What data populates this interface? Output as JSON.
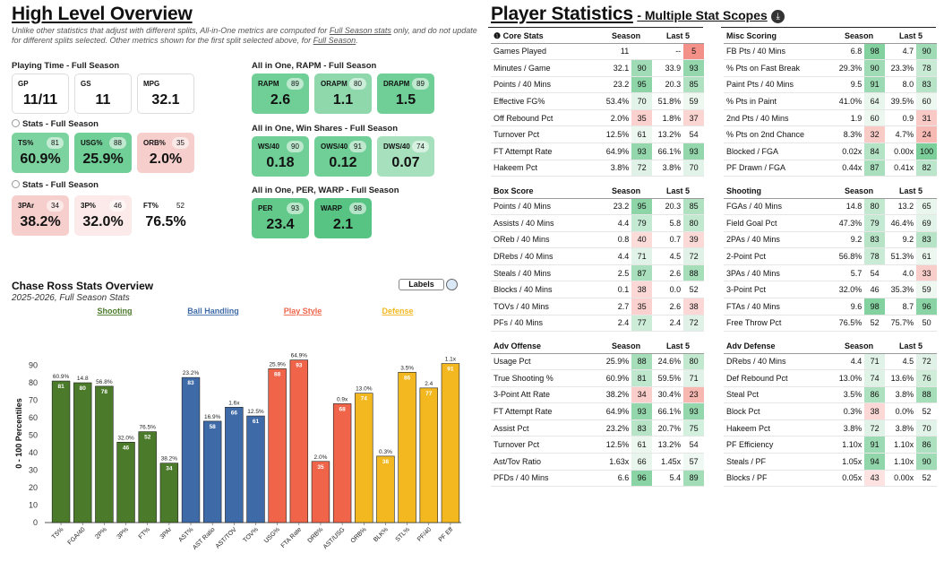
{
  "left_title": "High Level Overview",
  "note_parts": [
    "Unlike other statistics that adjust with different splits, All-in-One metrics are computed for ",
    "Full Season stats",
    " only, and do not update for different splits selected. Other metrics shown for the first split selected above, for ",
    "Full Season",
    "."
  ],
  "playing_time": {
    "title": "Playing Time - Full Season",
    "cards": [
      {
        "label": "GP",
        "value": "11/11"
      },
      {
        "label": "GS",
        "value": "11"
      },
      {
        "label": "MPG",
        "value": "32.1"
      }
    ]
  },
  "stats1": {
    "title": "Stats - Full Season",
    "cards": [
      {
        "label": "TS%",
        "pct": "81",
        "value": "60.9%",
        "color": "#7dd3a0"
      },
      {
        "label": "USG%",
        "pct": "88",
        "value": "25.9%",
        "color": "#6fcf96"
      },
      {
        "label": "ORB%",
        "pct": "35",
        "value": "2.0%",
        "color": "#f6cfcd"
      }
    ]
  },
  "stats2": {
    "title": "Stats - Full Season",
    "cards": [
      {
        "label": "3PAr",
        "pct": "34",
        "value": "38.2%",
        "color": "#f6cfcd"
      },
      {
        "label": "3P%",
        "pct": "46",
        "value": "32.0%",
        "color": "#fbeae9"
      },
      {
        "label": "FT%",
        "pct": "52",
        "value": "76.5%",
        "color": "#ffffff"
      }
    ]
  },
  "rapm": {
    "title": "All in One, RAPM - Full Season",
    "cards": [
      {
        "label": "RAPM",
        "pct": "89",
        "value": "2.6",
        "color": "#6fcf96"
      },
      {
        "label": "ORAPM",
        "pct": "80",
        "value": "1.1",
        "color": "#8fd8ac"
      },
      {
        "label": "DRAPM",
        "pct": "89",
        "value": "1.5",
        "color": "#6fcf96"
      }
    ]
  },
  "ws": {
    "title": "All in One, Win Shares - Full Season",
    "cards": [
      {
        "label": "WS/40",
        "pct": "90",
        "value": "0.18",
        "color": "#6fcf96"
      },
      {
        "label": "OWS/40",
        "pct": "91",
        "value": "0.12",
        "color": "#6fcf96"
      },
      {
        "label": "DWS/40",
        "pct": "74",
        "value": "0.07",
        "color": "#a7e0bd"
      }
    ]
  },
  "per": {
    "title": "All in One, PER, WARP - Full Season",
    "cards": [
      {
        "label": "PER",
        "pct": "93",
        "value": "23.4",
        "color": "#62c98b"
      },
      {
        "label": "WARP",
        "pct": "98",
        "value": "2.1",
        "color": "#58c483"
      }
    ]
  },
  "chart_title": "Chase Ross Stats Overview",
  "chart_subtitle": "2025-2026, Full Season Stats",
  "labels_button": "Labels",
  "chart_data": {
    "type": "bar",
    "ylabel": "0 - 100 Percentiles",
    "ylim": [
      0,
      100
    ],
    "yticks": [
      0,
      10,
      20,
      30,
      40,
      50,
      60,
      70,
      80,
      90
    ],
    "groups": [
      {
        "name": "Shooting",
        "color": "#4a7a2a"
      },
      {
        "name": "Ball Handling",
        "color": "#3f6aa8"
      },
      {
        "name": "Play Style",
        "color": "#f0644a"
      },
      {
        "name": "Defense",
        "color": "#f3b820"
      }
    ],
    "bars": [
      {
        "cat": "TS%",
        "value": 81,
        "label": "60.9%",
        "group": 0
      },
      {
        "cat": "FGA/40",
        "value": 80,
        "label": "14.8",
        "group": 0
      },
      {
        "cat": "2P%",
        "value": 78,
        "label": "56.8%",
        "group": 0
      },
      {
        "cat": "3P%",
        "value": 46,
        "label": "32.0%",
        "group": 0
      },
      {
        "cat": "FT%",
        "value": 52,
        "label": "76.5%",
        "group": 0
      },
      {
        "cat": "3PAr",
        "value": 34,
        "label": "38.2%",
        "group": 0
      },
      {
        "cat": "AST%",
        "value": 83,
        "label": "23.2%",
        "group": 1
      },
      {
        "cat": "AST Ratio",
        "value": 58,
        "label": "16.9%",
        "group": 1
      },
      {
        "cat": "AST/TOV",
        "value": 66,
        "label": "1.6x",
        "group": 1
      },
      {
        "cat": "TOV%",
        "value": 61,
        "label": "12.5%",
        "group": 1
      },
      {
        "cat": "USG%",
        "value": 88,
        "label": "25.9%",
        "group": 2
      },
      {
        "cat": "FTA Rate",
        "value": 93,
        "label": "64.9%",
        "group": 2
      },
      {
        "cat": "DRB%",
        "value": 35,
        "label": "2.0%",
        "group": 2
      },
      {
        "cat": "AST/USG",
        "value": 68,
        "label": "0.9x",
        "group": 2
      },
      {
        "cat": "ORB%",
        "value": 74,
        "label": "13.0%",
        "group": 3
      },
      {
        "cat": "BLK%",
        "value": 38,
        "label": "0.3%",
        "group": 3
      },
      {
        "cat": "STL%",
        "value": 86,
        "label": "3.5%",
        "group": 3
      },
      {
        "cat": "PF/40",
        "value": 77,
        "label": "2.4",
        "group": 3
      },
      {
        "cat": "PF Eff",
        "value": 91,
        "label": "1.1x",
        "group": 3
      }
    ]
  },
  "right_title": "Player Statistics",
  "right_subtitle": "- Multiple Stat Scopes",
  "tables": [
    {
      "title": "Core Stats",
      "h1": "Season",
      "h2": "Last 5",
      "rows": [
        [
          "Games Played",
          "11",
          "",
          "--",
          "5",
          ""
        ],
        [
          "Minutes / Game",
          "32.1",
          "90",
          "33.9",
          "93"
        ],
        [
          "Points / 40 Mins",
          "23.2",
          "95",
          "20.3",
          "85"
        ],
        [
          "Effective FG%",
          "53.4%",
          "70",
          "51.8%",
          "59"
        ],
        [
          "Off Rebound Pct",
          "2.0%",
          "35",
          "1.8%",
          "37"
        ],
        [
          "Turnover Pct",
          "12.5%",
          "61",
          "13.2%",
          "54"
        ],
        [
          "FT Attempt Rate",
          "64.9%",
          "93",
          "66.1%",
          "93"
        ],
        [
          "Hakeem Pct",
          "3.8%",
          "72",
          "3.8%",
          "70"
        ]
      ]
    },
    {
      "title": "Misc Scoring",
      "h1": "Season",
      "h2": "Last 5",
      "rows": [
        [
          "FB Pts / 40 Mins",
          "6.8",
          "98",
          "4.7",
          "90"
        ],
        [
          "% Pts on Fast Break",
          "29.3%",
          "90",
          "23.3%",
          "78"
        ],
        [
          "Paint Pts / 40 Mins",
          "9.5",
          "91",
          "8.0",
          "83"
        ],
        [
          "% Pts in Paint",
          "41.0%",
          "64",
          "39.5%",
          "60"
        ],
        [
          "2nd Pts / 40 Mins",
          "1.9",
          "60",
          "0.9",
          "31"
        ],
        [
          "% Pts on 2nd Chance",
          "8.3%",
          "32",
          "4.7%",
          "24"
        ],
        [
          "Blocked / FGA",
          "0.02x",
          "84",
          "0.00x",
          "100"
        ],
        [
          "PF Drawn / FGA",
          "0.44x",
          "87",
          "0.41x",
          "82"
        ]
      ]
    },
    {
      "title": "Box Score",
      "h1": "Season",
      "h2": "Last 5",
      "rows": [
        [
          "Points / 40 Mins",
          "23.2",
          "95",
          "20.3",
          "85"
        ],
        [
          "Assists / 40 Mins",
          "4.4",
          "79",
          "5.8",
          "80"
        ],
        [
          "OReb / 40 Mins",
          "0.8",
          "40",
          "0.7",
          "39"
        ],
        [
          "DRebs / 40 Mins",
          "4.4",
          "71",
          "4.5",
          "72"
        ],
        [
          "Steals / 40 Mins",
          "2.5",
          "87",
          "2.6",
          "88"
        ],
        [
          "Blocks / 40 Mins",
          "0.1",
          "38",
          "0.0",
          "52"
        ],
        [
          "TOVs / 40 Mins",
          "2.7",
          "35",
          "2.6",
          "38"
        ],
        [
          "PFs / 40 Mins",
          "2.4",
          "77",
          "2.4",
          "72"
        ]
      ]
    },
    {
      "title": "Shooting",
      "h1": "Season",
      "h2": "Last 5",
      "rows": [
        [
          "FGAs / 40 Mins",
          "14.8",
          "80",
          "13.2",
          "65"
        ],
        [
          "Field Goal Pct",
          "47.3%",
          "79",
          "46.4%",
          "69"
        ],
        [
          "2PAs / 40 Mins",
          "9.2",
          "83",
          "9.2",
          "83"
        ],
        [
          "2-Point Pct",
          "56.8%",
          "78",
          "51.3%",
          "61"
        ],
        [
          "3PAs / 40 Mins",
          "5.7",
          "54",
          "4.0",
          "33"
        ],
        [
          "3-Point Pct",
          "32.0%",
          "46",
          "35.3%",
          "59"
        ],
        [
          "FTAs / 40 Mins",
          "9.6",
          "98",
          "8.7",
          "96"
        ],
        [
          "Free Throw Pct",
          "76.5%",
          "52",
          "75.7%",
          "50"
        ]
      ]
    },
    {
      "title": "Adv Offense",
      "h1": "Season",
      "h2": "Last 5",
      "rows": [
        [
          "Usage Pct",
          "25.9%",
          "88",
          "24.6%",
          "80"
        ],
        [
          "True Shooting %",
          "60.9%",
          "81",
          "59.5%",
          "71"
        ],
        [
          "3-Point Att Rate",
          "38.2%",
          "34",
          "30.4%",
          "23"
        ],
        [
          "FT Attempt Rate",
          "64.9%",
          "93",
          "66.1%",
          "93"
        ],
        [
          "Assist Pct",
          "23.2%",
          "83",
          "20.7%",
          "75"
        ],
        [
          "Turnover Pct",
          "12.5%",
          "61",
          "13.2%",
          "54"
        ],
        [
          "Ast/Tov Ratio",
          "1.63x",
          "66",
          "1.45x",
          "57"
        ],
        [
          "PFDs / 40 Mins",
          "6.6",
          "96",
          "5.4",
          "89"
        ]
      ]
    },
    {
      "title": "Adv Defense",
      "h1": "Season",
      "h2": "Last 5",
      "rows": [
        [
          "DRebs / 40 Mins",
          "4.4",
          "71",
          "4.5",
          "72"
        ],
        [
          "Def Rebound Pct",
          "13.0%",
          "74",
          "13.6%",
          "76"
        ],
        [
          "Steal Pct",
          "3.5%",
          "86",
          "3.8%",
          "88"
        ],
        [
          "Block Pct",
          "0.3%",
          "38",
          "0.0%",
          "52"
        ],
        [
          "Hakeem Pct",
          "3.8%",
          "72",
          "3.8%",
          "70"
        ],
        [
          "PF Efficiency",
          "1.10x",
          "91",
          "1.10x",
          "86"
        ],
        [
          "Steals / PF",
          "1.05x",
          "94",
          "1.10x",
          "90"
        ],
        [
          "Blocks / PF",
          "0.05x",
          "43",
          "0.00x",
          "52"
        ]
      ]
    }
  ]
}
